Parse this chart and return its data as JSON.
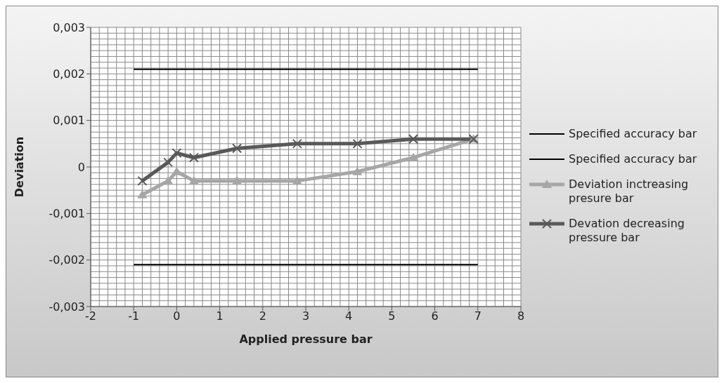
{
  "chart_data": {
    "type": "line",
    "xlabel": "Applied pressure bar",
    "ylabel": "Deviation",
    "xlim": [
      -2,
      8
    ],
    "xticks": [
      -2,
      -1,
      0,
      1,
      2,
      3,
      4,
      5,
      6,
      7,
      8
    ],
    "ylim": [
      -0.003,
      0.003
    ],
    "yticks": [
      {
        "value": -0.003,
        "label": "-0,003"
      },
      {
        "value": -0.002,
        "label": "-0,002"
      },
      {
        "value": -0.001,
        "label": "-0,001"
      },
      {
        "value": 0,
        "label": "0"
      },
      {
        "value": 0.001,
        "label": "0,001"
      },
      {
        "value": 0.002,
        "label": "0,002"
      },
      {
        "value": 0.003,
        "label": "0,003"
      }
    ],
    "grid": true,
    "legend": "right",
    "series": [
      {
        "name": "Specified accuracy bar",
        "color": "#000000",
        "marker": "none",
        "x": [
          -1,
          7
        ],
        "values": [
          0.0021,
          0.0021
        ]
      },
      {
        "name": "Specified accuracy bar",
        "color": "#000000",
        "marker": "none",
        "x": [
          -1,
          7
        ],
        "values": [
          -0.0021,
          -0.0021
        ]
      },
      {
        "name": "Deviation inctreasing presure bar",
        "color": "#a6a6a6",
        "marker": "triangle",
        "x": [
          -0.8,
          -0.2,
          0,
          0.4,
          1.4,
          2.8,
          4.2,
          5.5,
          6.9
        ],
        "values": [
          -0.0006,
          -0.0003,
          -0.0001,
          -0.0003,
          -0.0003,
          -0.0003,
          -0.0001,
          0.0002,
          0.0006
        ]
      },
      {
        "name": "Devation decreasing pressure bar",
        "color": "#595959",
        "marker": "cross",
        "x": [
          -0.8,
          -0.2,
          0,
          0.4,
          1.4,
          2.8,
          4.2,
          5.5,
          6.9
        ],
        "values": [
          -0.0003,
          0.0001,
          0.0003,
          0.0002,
          0.0004,
          0.0005,
          0.0005,
          0.0006,
          0.0006
        ]
      }
    ]
  }
}
